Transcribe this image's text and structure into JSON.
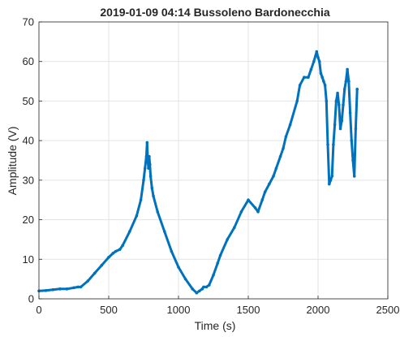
{
  "chart_data": {
    "type": "scatter",
    "title": "2019-01-09 04:14 Bussoleno Bardonecchia",
    "xlabel": "Time (s)",
    "ylabel": "Amplitude (V)",
    "xlim": [
      0,
      2500
    ],
    "ylim": [
      0,
      70
    ],
    "xticks": [
      "0",
      "500",
      "1000",
      "1500",
      "2000",
      "2500"
    ],
    "yticks": [
      "0",
      "10",
      "20",
      "30",
      "40",
      "50",
      "60",
      "70"
    ],
    "grid": true,
    "legend": "none",
    "color": "#0072BD",
    "series": [
      {
        "x": [
          0,
          50,
          100,
          150,
          200,
          250,
          280,
          300,
          350,
          400,
          450,
          500,
          530,
          550,
          580,
          600,
          650,
          700,
          730,
          750,
          760,
          770,
          775,
          780,
          785,
          790,
          795,
          800,
          810,
          820,
          850,
          900,
          950,
          1000,
          1050,
          1100,
          1130,
          1150,
          1170,
          1180,
          1200,
          1220,
          1250,
          1280,
          1300,
          1350,
          1400,
          1450,
          1500,
          1550,
          1570,
          1600,
          1620,
          1650,
          1680,
          1700,
          1730,
          1750,
          1770,
          1800,
          1850,
          1870,
          1900,
          1930,
          1950,
          1970,
          1990,
          2000,
          2010,
          2020,
          2030,
          2040,
          2050,
          2060,
          2070,
          2080,
          2090,
          2100,
          2110,
          2120,
          2130,
          2140,
          2150,
          2160,
          2170,
          2180,
          2190,
          2200,
          2210,
          2220,
          2230,
          2240,
          2250,
          2260,
          2270,
          2280
        ],
        "y": [
          2,
          2.1,
          2.3,
          2.5,
          2.5,
          2.8,
          3,
          3,
          4.5,
          6.5,
          8.5,
          10.5,
          11.5,
          12,
          12.5,
          13.5,
          17,
          21,
          25,
          30,
          33,
          36,
          39.5,
          35,
          33,
          36,
          34,
          31,
          28,
          26,
          22,
          17,
          12,
          8,
          5,
          2.5,
          1.5,
          2,
          2.5,
          3,
          3,
          3.5,
          6,
          9,
          11,
          15,
          18,
          22,
          25,
          23,
          22,
          25,
          27,
          29,
          31,
          33,
          36,
          38,
          41,
          44,
          50,
          54,
          56,
          56,
          58,
          60,
          62.5,
          61,
          60,
          57,
          56,
          55,
          54,
          50,
          39,
          29,
          30,
          31,
          39,
          44,
          50,
          52,
          49,
          43,
          45,
          49,
          53,
          55,
          58,
          55,
          47,
          40,
          35,
          31,
          43,
          53
        ]
      }
    ]
  }
}
